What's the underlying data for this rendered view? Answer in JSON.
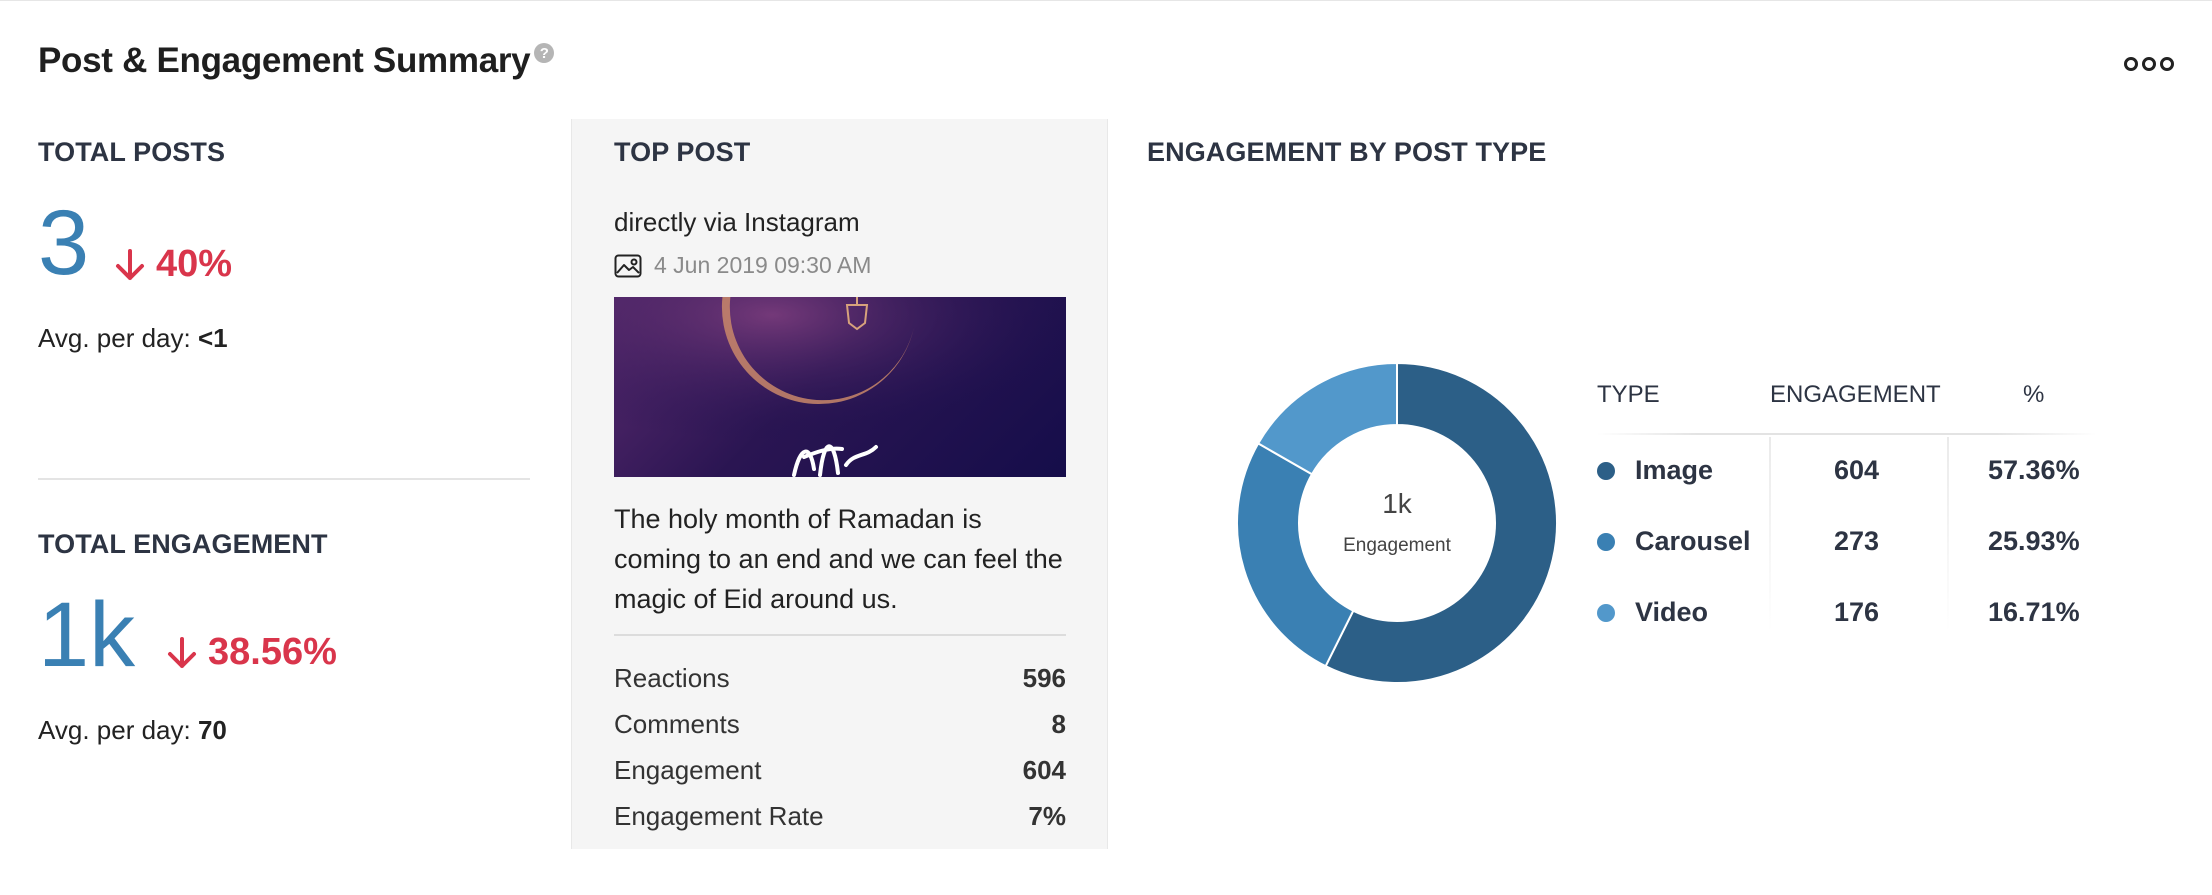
{
  "header": {
    "title": "Post & Engagement Summary",
    "help_glyph": "?"
  },
  "total_posts": {
    "label": "TOTAL POSTS",
    "value": "3",
    "delta": "40%",
    "avg_label": "Avg. per day:",
    "avg_value": "<1"
  },
  "total_engagement": {
    "label": "TOTAL ENGAGEMENT",
    "value": "1k",
    "delta": "38.56%",
    "avg_label": "Avg. per day:",
    "avg_value": "70"
  },
  "top_post": {
    "label": "TOP POST",
    "source": "directly via Instagram",
    "date": "4 Jun 2019 09:30 AM",
    "text": "The holy month of Ramadan is coming to an end and we can feel the magic of Eid around us.",
    "metrics": [
      {
        "label": "Reactions",
        "value": "596"
      },
      {
        "label": "Comments",
        "value": "8"
      },
      {
        "label": "Engagement",
        "value": "604"
      },
      {
        "label": "Engagement Rate",
        "value": "7%"
      }
    ]
  },
  "engagement_by_type": {
    "label": "ENGAGEMENT BY POST TYPE",
    "center_value": "1k",
    "center_label": "Engagement",
    "columns": [
      "TYPE",
      "ENGAGEMENT",
      "%"
    ],
    "rows": [
      {
        "type": "Image",
        "engagement": "604",
        "percent": "57.36%",
        "color": "#2c5f87"
      },
      {
        "type": "Carousel",
        "engagement": "273",
        "percent": "25.93%",
        "color": "#3a80b3"
      },
      {
        "type": "Video",
        "engagement": "176",
        "percent": "16.71%",
        "color": "#5298cb"
      }
    ]
  },
  "chart_data": {
    "type": "pie",
    "categories": [
      "Image",
      "Carousel",
      "Video"
    ],
    "values": [
      604,
      273,
      176
    ],
    "percent": [
      57.36,
      25.93,
      16.71
    ],
    "colors": [
      "#2c5f87",
      "#3a80b3",
      "#5298cb"
    ],
    "title": "ENGAGEMENT BY POST TYPE",
    "center_text": "1k",
    "center_subtext": "Engagement"
  },
  "colors": {
    "accent_blue": "#3a80b3",
    "negative_red": "#d9354b"
  }
}
